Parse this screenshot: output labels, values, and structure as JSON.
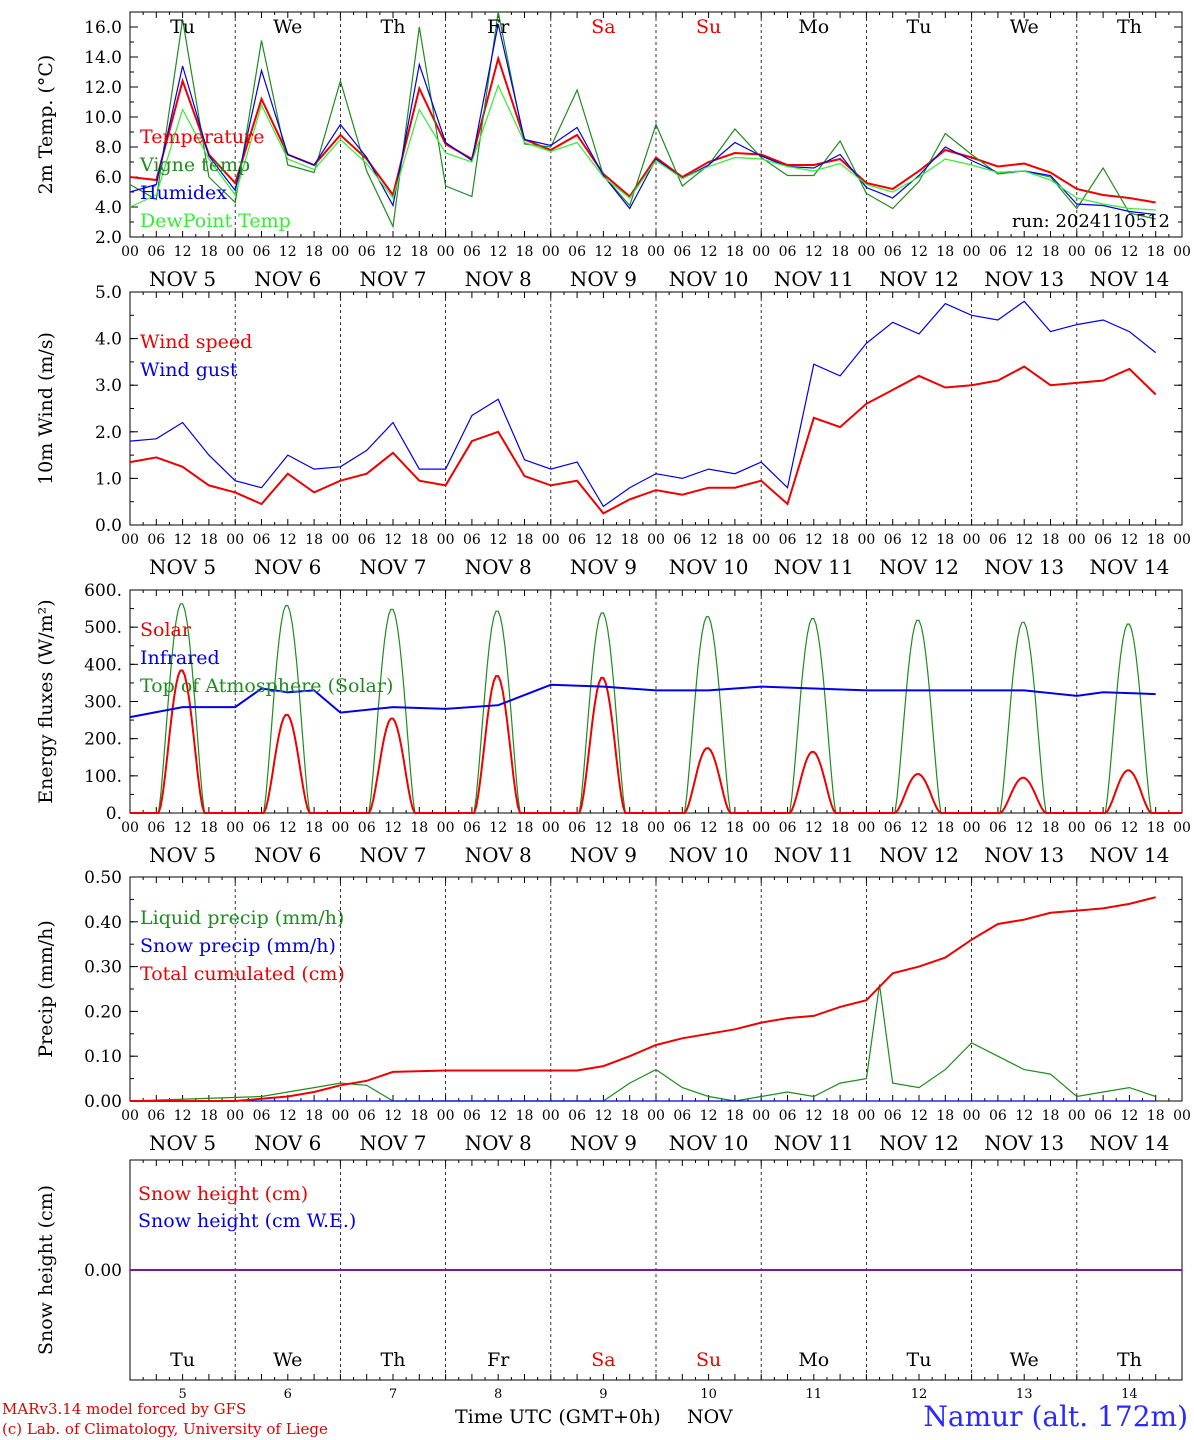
{
  "colors": {
    "red": "#ee0000",
    "green": "#1e8c1e",
    "blue": "#0000e6",
    "lightgreen": "#33ee33",
    "purple": "#7a1a9a",
    "weekend": "#ee0000",
    "text": "#000000"
  },
  "days": [
    {
      "dow": "Tu",
      "date": "5",
      "weekend": false
    },
    {
      "dow": "We",
      "date": "6",
      "weekend": false
    },
    {
      "dow": "Th",
      "date": "7",
      "weekend": false
    },
    {
      "dow": "Fr",
      "date": "8",
      "weekend": false
    },
    {
      "dow": "Sa",
      "date": "9",
      "weekend": true
    },
    {
      "dow": "Su",
      "date": "10",
      "weekend": true
    },
    {
      "dow": "Mo",
      "date": "11",
      "weekend": false
    },
    {
      "dow": "Tu",
      "date": "12",
      "weekend": false
    },
    {
      "dow": "We",
      "date": "13",
      "weekend": false
    },
    {
      "dow": "Th",
      "date": "14",
      "weekend": false
    }
  ],
  "month": "NOV",
  "hour_ticks": [
    "00",
    "06",
    "12",
    "18"
  ],
  "footer": {
    "credit1": "MARv3.14 model forced by GFS",
    "credit2": "(c) Lab. of Climatology, University of Liege",
    "xaxis_title": "Time UTC (GMT+0h)",
    "month_label": "NOV",
    "location": "Namur (alt. 172m)"
  },
  "chart_data": [
    {
      "type": "line",
      "ylabel": "2m Temp. (°C)",
      "ylim": [
        2.0,
        17.0
      ],
      "yticks": [
        "2.0",
        "4.0",
        "6.0",
        "8.0",
        "10.0",
        "12.0",
        "14.0",
        "16.0"
      ],
      "yticks_values": [
        2,
        4,
        6,
        8,
        10,
        12,
        14,
        16
      ],
      "note": "run: 2024110512",
      "legend_placement": "left",
      "x_hours_from_nov5_00utc": [
        0,
        6,
        12,
        18,
        24,
        30,
        36,
        42,
        48,
        54,
        60,
        66,
        72,
        78,
        84,
        90,
        96,
        102,
        108,
        114,
        120,
        126,
        132,
        138,
        144,
        150,
        156,
        162,
        168,
        174,
        180,
        186,
        192,
        198,
        204,
        210,
        216,
        222,
        228,
        234
      ],
      "series": [
        {
          "name": "Temperature",
          "color": "red",
          "values": [
            6.0,
            5.8,
            12.4,
            7.5,
            5.6,
            11.2,
            7.5,
            6.8,
            8.8,
            7.2,
            4.8,
            11.9,
            8.2,
            7.2,
            13.9,
            8.5,
            7.8,
            8.8,
            6.2,
            4.7,
            7.3,
            6.0,
            7.0,
            7.6,
            7.5,
            6.8,
            6.8,
            7.2,
            5.6,
            5.2,
            6.4,
            7.8,
            7.3,
            6.7,
            6.9,
            6.3,
            5.2,
            4.8,
            4.6,
            4.3
          ]
        },
        {
          "name": "Vigne temp",
          "color": "green",
          "values": [
            5.5,
            4.5,
            16.5,
            6.0,
            4.3,
            15.1,
            6.8,
            6.3,
            12.4,
            6.4,
            2.7,
            16.0,
            5.4,
            4.7,
            17.0,
            8.2,
            8.0,
            11.8,
            6.1,
            4.1,
            9.5,
            5.4,
            6.8,
            9.2,
            7.3,
            6.1,
            6.1,
            8.4,
            4.9,
            3.9,
            5.7,
            8.9,
            7.5,
            6.2,
            6.4,
            6.0,
            3.9,
            6.6,
            3.6,
            3.2
          ]
        },
        {
          "name": "Humidex",
          "color": "blue",
          "values": [
            5.0,
            5.5,
            13.4,
            7.4,
            5.1,
            13.1,
            7.5,
            6.8,
            9.5,
            7.3,
            4.1,
            13.5,
            8.3,
            7.1,
            16.2,
            8.5,
            8.1,
            9.3,
            6.1,
            3.9,
            7.2,
            5.9,
            6.8,
            8.3,
            7.4,
            6.7,
            6.6,
            7.5,
            5.3,
            4.6,
            6.1,
            8.0,
            7.1,
            6.3,
            6.4,
            6.1,
            4.2,
            4.1,
            3.7,
            3.5
          ]
        },
        {
          "name": "DewPoint Temp",
          "color": "lightgreen",
          "values": [
            4.0,
            4.8,
            10.5,
            7.2,
            4.8,
            10.8,
            7.2,
            6.5,
            8.5,
            6.9,
            4.6,
            10.5,
            7.6,
            7.0,
            12.1,
            8.3,
            7.7,
            8.3,
            6.0,
            4.6,
            7.1,
            5.9,
            6.7,
            7.3,
            7.2,
            6.7,
            6.4,
            6.9,
            5.5,
            5.0,
            6.0,
            7.2,
            6.8,
            6.3,
            6.4,
            5.8,
            4.6,
            4.2,
            3.9,
            3.8
          ]
        }
      ]
    },
    {
      "type": "line",
      "ylabel": "10m Wind (m/s)",
      "ylim": [
        0.0,
        5.0
      ],
      "yticks": [
        "0.0",
        "1.0",
        "2.0",
        "3.0",
        "4.0",
        "5.0"
      ],
      "yticks_values": [
        0,
        1,
        2,
        3,
        4,
        5
      ],
      "legend_placement": "left",
      "x_hours_from_nov5_00utc": [
        0,
        6,
        12,
        18,
        24,
        30,
        36,
        42,
        48,
        54,
        60,
        66,
        72,
        78,
        84,
        90,
        96,
        102,
        108,
        114,
        120,
        126,
        132,
        138,
        144,
        150,
        156,
        162,
        168,
        174,
        180,
        186,
        192,
        198,
        204,
        210,
        216,
        222,
        228,
        234
      ],
      "series": [
        {
          "name": "Wind speed",
          "color": "red",
          "values": [
            1.35,
            1.45,
            1.25,
            0.85,
            0.7,
            0.45,
            1.1,
            0.7,
            0.95,
            1.1,
            1.55,
            0.95,
            0.85,
            1.8,
            2.0,
            1.05,
            0.85,
            0.95,
            0.25,
            0.55,
            0.75,
            0.65,
            0.8,
            0.8,
            0.95,
            0.45,
            2.3,
            2.1,
            2.6,
            2.9,
            3.2,
            2.95,
            3.0,
            3.1,
            3.4,
            3.0,
            3.05,
            3.1,
            3.35,
            2.8
          ]
        },
        {
          "name": "Wind gust",
          "color": "blue",
          "values": [
            1.8,
            1.85,
            2.2,
            1.5,
            0.95,
            0.8,
            1.5,
            1.2,
            1.25,
            1.6,
            2.2,
            1.2,
            1.2,
            2.35,
            2.7,
            1.4,
            1.2,
            1.35,
            0.4,
            0.8,
            1.1,
            1.0,
            1.2,
            1.1,
            1.35,
            0.8,
            3.45,
            3.2,
            3.9,
            4.35,
            4.1,
            4.75,
            4.5,
            4.4,
            4.8,
            4.15,
            4.3,
            4.4,
            4.15,
            3.7
          ]
        }
      ]
    },
    {
      "type": "line",
      "ylabel": "Energy fluxes (W/m²)",
      "ylim": [
        0,
        600
      ],
      "yticks": [
        "0.",
        "100.",
        "200.",
        "300.",
        "400.",
        "500.",
        "600."
      ],
      "yticks_values": [
        0,
        100,
        200,
        300,
        400,
        500,
        600
      ],
      "legend_placement": "left",
      "daylight_hours_utc": [
        6.5,
        17.0
      ],
      "daily_peaks": {
        "solar": [
          385,
          265,
          255,
          370,
          365,
          175,
          165,
          105,
          95,
          115
        ],
        "top_of_atmosphere": [
          565,
          560,
          550,
          545,
          540,
          530,
          525,
          520,
          515,
          510
        ]
      },
      "x_hours_from_nov5_00utc": [
        0,
        12,
        24,
        30,
        36,
        42,
        48,
        60,
        72,
        84,
        96,
        108,
        120,
        132,
        144,
        156,
        168,
        180,
        192,
        204,
        216,
        222,
        234
      ],
      "series": [
        {
          "name": "Solar",
          "color": "red"
        },
        {
          "name": "Infrared",
          "color": "blue",
          "values": [
            258,
            285,
            285,
            335,
            325,
            330,
            270,
            285,
            280,
            290,
            345,
            340,
            330,
            330,
            340,
            335,
            330,
            330,
            330,
            330,
            315,
            325,
            320
          ]
        },
        {
          "name": "Top of Atmosphere (Solar)",
          "color": "green"
        }
      ]
    },
    {
      "type": "line",
      "ylabel": "Precip (mm/h)",
      "ylim": [
        0.0,
        0.5
      ],
      "yticks": [
        "0.00",
        "0.10",
        "0.20",
        "0.30",
        "0.40",
        "0.50"
      ],
      "yticks_values": [
        0,
        0.1,
        0.2,
        0.3,
        0.4,
        0.5
      ],
      "legend_placement": "left",
      "series": [
        {
          "name": "Liquid precip (mm/h)",
          "color": "green",
          "x_hours_from_nov5_00utc": [
            0,
            30,
            36,
            42,
            48,
            54,
            60,
            66,
            72,
            108,
            114,
            120,
            126,
            132,
            138,
            144,
            150,
            156,
            162,
            168,
            171,
            174,
            180,
            186,
            192,
            198,
            204,
            210,
            216,
            222,
            228,
            234
          ],
          "values": [
            0,
            0.01,
            0.02,
            0.03,
            0.04,
            0.035,
            0.0,
            0,
            0,
            0,
            0.04,
            0.07,
            0.03,
            0.01,
            0.0,
            0.01,
            0.02,
            0.01,
            0.04,
            0.05,
            0.26,
            0.04,
            0.03,
            0.07,
            0.13,
            0.1,
            0.07,
            0.06,
            0.01,
            0.02,
            0.03,
            0.01
          ]
        },
        {
          "name": "Snow precip (mm/h)",
          "color": "blue",
          "x_hours_from_nov5_00utc": [
            0,
            234
          ],
          "values": [
            0,
            0
          ]
        },
        {
          "name": "Total cumulated (cm)",
          "color": "red",
          "x_hours_from_nov5_00utc": [
            0,
            24,
            30,
            36,
            42,
            48,
            54,
            60,
            72,
            84,
            96,
            102,
            108,
            114,
            120,
            126,
            132,
            138,
            144,
            150,
            156,
            162,
            168,
            171,
            174,
            180,
            186,
            192,
            198,
            204,
            210,
            216,
            222,
            228,
            234
          ],
          "values": [
            0,
            0,
            0.005,
            0.01,
            0.02,
            0.035,
            0.045,
            0.065,
            0.068,
            0.068,
            0.068,
            0.068,
            0.078,
            0.1,
            0.125,
            0.14,
            0.15,
            0.16,
            0.175,
            0.185,
            0.19,
            0.21,
            0.225,
            0.255,
            0.285,
            0.3,
            0.32,
            0.36,
            0.395,
            0.405,
            0.42,
            0.425,
            0.43,
            0.44,
            0.455
          ]
        }
      ]
    },
    {
      "type": "line",
      "ylabel": "Snow height (cm)",
      "ylim": [
        -1.0,
        1.0
      ],
      "yticks": [
        "0.00"
      ],
      "yticks_values": [
        0
      ],
      "legend_placement": "left",
      "x_hours_from_nov5_00utc": [
        0,
        240
      ],
      "series": [
        {
          "name": "Snow height (cm)",
          "color": "red",
          "values": [
            0,
            0
          ]
        },
        {
          "name": "Snow height (cm W.E.)",
          "color": "blue",
          "values": [
            0,
            0
          ]
        }
      ]
    }
  ]
}
